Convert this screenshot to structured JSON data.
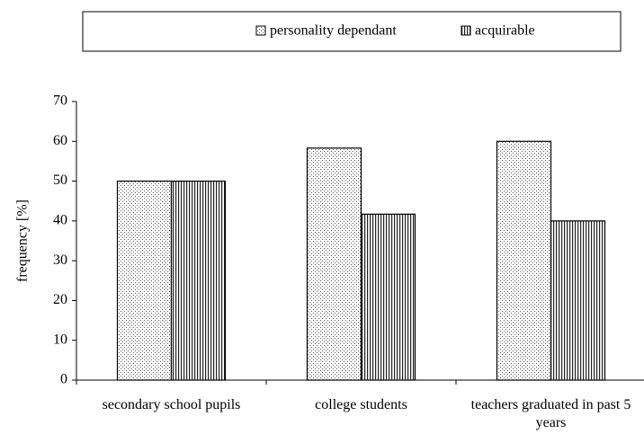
{
  "chart_data": {
    "type": "bar",
    "y_label": "frequency [%]",
    "categories": [
      "secondary school pupils",
      "college students",
      "teachers graduated in past 5 years"
    ],
    "series": [
      {
        "name": "personality dependant",
        "values": [
          50,
          58.3,
          60
        ]
      },
      {
        "name": "acquirable",
        "values": [
          50,
          41.7,
          40
        ]
      }
    ],
    "ylim": [
      0,
      70
    ],
    "yticks": [
      0,
      10,
      20,
      30,
      40,
      50,
      60,
      70
    ],
    "legend": "top"
  }
}
